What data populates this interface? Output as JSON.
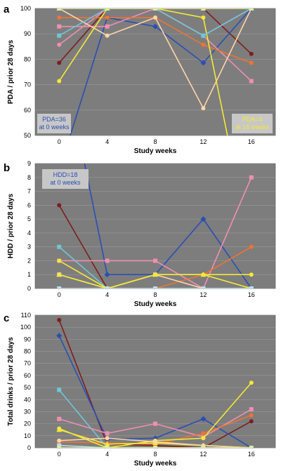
{
  "chart_data": [
    {
      "panel": "a",
      "type": "line",
      "ylabel": "PDA / prior 28 days",
      "xlabel": "Study weeks",
      "ylim": [
        50,
        100
      ],
      "yticks": [
        50,
        60,
        70,
        80,
        90,
        100
      ],
      "x": [
        0,
        4,
        8,
        12,
        16
      ],
      "grid": true,
      "annotations": [
        {
          "text": "PDA=36",
          "text2": "at 0 weeks",
          "color": "#2a4fb3"
        },
        {
          "text": "PDA=4",
          "text2": "at 16 weeks",
          "color": "#f4e838"
        }
      ],
      "series": [
        {
          "color": "#7f1d1d",
          "marker": "circle",
          "values": [
            78.6,
            100,
            100,
            100,
            82.1
          ]
        },
        {
          "color": "#2a4fb3",
          "marker": "diamond",
          "values": [
            36,
            96.4,
            92.9,
            78.6,
            100
          ]
        },
        {
          "color": "#f08fb0",
          "marker": "square",
          "values": [
            92.9,
            92.9,
            100,
            89.3,
            71.4
          ]
        },
        {
          "color": "#f08fb0",
          "marker": "circle",
          "values": [
            85.7,
            100,
            100,
            89.3,
            100
          ]
        },
        {
          "color": "#ee7433",
          "marker": "circle",
          "values": [
            96.4,
            96.4,
            96.4,
            85.7,
            78.6
          ]
        },
        {
          "color": "#ffd4a8",
          "marker": "circle",
          "values": [
            100,
            89.3,
            96.4,
            60.7,
            100
          ]
        },
        {
          "color": "#f4e838",
          "marker": "circle",
          "values": [
            71.4,
            100,
            100,
            96.4,
            4
          ]
        },
        {
          "color": "#6fc6d8",
          "marker": "square",
          "values": [
            89.3,
            100,
            100,
            89.3,
            100
          ]
        },
        {
          "color": "#b8dff0",
          "marker": "triangle",
          "values": [
            100,
            100,
            100,
            100,
            100
          ]
        },
        {
          "color": "#e6f08a",
          "marker": "circle",
          "values": [
            100,
            100,
            100,
            100,
            100
          ]
        }
      ]
    },
    {
      "panel": "b",
      "type": "line",
      "ylabel": "HDD / prior 28 days",
      "xlabel": "Study weeks",
      "ylim": [
        0,
        9
      ],
      "yticks": [
        0,
        1,
        2,
        3,
        4,
        5,
        6,
        7,
        8,
        9
      ],
      "x": [
        0,
        4,
        8,
        12,
        16
      ],
      "grid": true,
      "annotations": [
        {
          "text": "HDD=18",
          "text2": "at 0 weeks",
          "color": "#2a4fb3"
        }
      ],
      "series": [
        {
          "color": "#7f1d1d",
          "marker": "circle",
          "values": [
            6,
            0,
            0,
            0,
            0
          ]
        },
        {
          "color": "#2a4fb3",
          "marker": "diamond",
          "values": [
            18,
            1,
            1,
            5,
            0
          ]
        },
        {
          "color": "#f08fb0",
          "marker": "square",
          "values": [
            2,
            2,
            2,
            0,
            8
          ]
        },
        {
          "color": "#6fc6d8",
          "marker": "square",
          "values": [
            3,
            0,
            0,
            0,
            0
          ]
        },
        {
          "color": "#ee7433",
          "marker": "circle",
          "values": [
            0,
            0,
            0,
            1,
            3
          ]
        },
        {
          "color": "#ffd4a8",
          "marker": "square",
          "values": [
            1,
            0,
            1,
            0,
            0
          ]
        },
        {
          "color": "#f4e838",
          "marker": "circle",
          "values": [
            2,
            0,
            1,
            1,
            1
          ]
        },
        {
          "color": "#f4e838",
          "marker": "triangle",
          "values": [
            1,
            0,
            1,
            1,
            0
          ]
        },
        {
          "color": "#b8dff0",
          "marker": "square",
          "values": [
            0,
            0,
            0,
            0,
            0
          ]
        }
      ]
    },
    {
      "panel": "c",
      "type": "line",
      "ylabel": "Total drinks / prior 28 days",
      "xlabel": "Study weeks",
      "ylim": [
        0,
        110
      ],
      "yticks": [
        0,
        10,
        20,
        30,
        40,
        50,
        60,
        70,
        80,
        90,
        100,
        110
      ],
      "x": [
        0,
        4,
        8,
        12,
        16
      ],
      "grid": true,
      "annotations": [],
      "series": [
        {
          "color": "#7f1d1d",
          "marker": "circle",
          "values": [
            106,
            3,
            2,
            0,
            22
          ]
        },
        {
          "color": "#2a4fb3",
          "marker": "diamond",
          "values": [
            93,
            7,
            8,
            24,
            0
          ]
        },
        {
          "color": "#6fc6d8",
          "marker": "square",
          "values": [
            48,
            0,
            0,
            0,
            0
          ]
        },
        {
          "color": "#f08fb0",
          "marker": "square",
          "values": [
            24,
            12,
            20,
            9,
            32
          ]
        },
        {
          "color": "#ee7433",
          "marker": "circle",
          "values": [
            5,
            4,
            3,
            12,
            27
          ]
        },
        {
          "color": "#f4e838",
          "marker": "circle",
          "values": [
            16,
            0,
            6,
            8,
            54
          ]
        },
        {
          "color": "#f4e838",
          "marker": "triangle",
          "values": [
            15,
            3,
            4,
            2,
            0
          ]
        },
        {
          "color": "#ffd4a8",
          "marker": "circle",
          "values": [
            6,
            8,
            5,
            2,
            0
          ]
        },
        {
          "color": "#b8dff0",
          "marker": "square",
          "values": [
            2,
            0,
            0,
            0,
            0
          ]
        },
        {
          "color": "#e6f08a",
          "marker": "circle",
          "values": [
            0,
            0,
            0,
            0,
            0
          ]
        }
      ]
    }
  ]
}
